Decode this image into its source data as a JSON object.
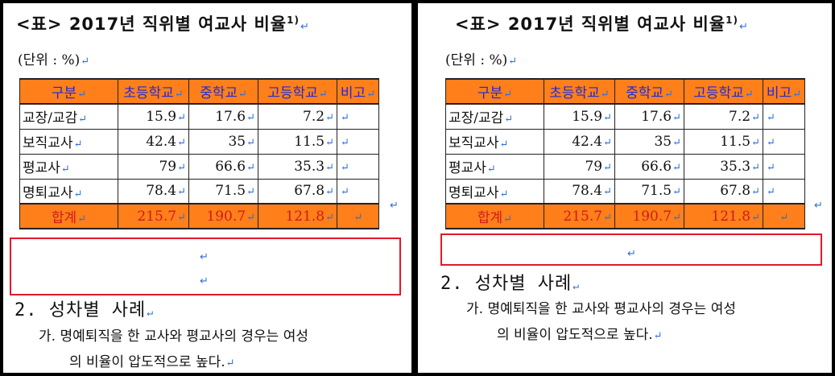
{
  "title_text": "<표> 2017년 직위별 여교사 비율",
  "title_footnote": "1)",
  "unit_text": "(단위 : %)",
  "paragraph_mark": "↵",
  "table": {
    "headers": [
      "구분",
      "초등학교",
      "중학교",
      "고등학교",
      "비고"
    ],
    "rows": [
      {
        "label": "교장/교감",
        "values": [
          "15.9",
          "17.6",
          "7.2"
        ]
      },
      {
        "label": "보직교사",
        "values": [
          "42.4",
          "35",
          "11.5"
        ]
      },
      {
        "label": "평교사",
        "values": [
          "79",
          "66.6",
          "35.3"
        ]
      },
      {
        "label": "명퇴교사",
        "values": [
          "78.4",
          "71.5",
          "67.8"
        ]
      }
    ],
    "total": {
      "label": "합계",
      "values": [
        "215.7",
        "190.7",
        "121.8"
      ]
    }
  },
  "section_heading": "2. 성차별 사례",
  "body_line1": "가. 명예퇴직을 한 교사와 평교사의 경우는 여성",
  "body_line2": "의 비율이 압도적으로 높다.",
  "colors": {
    "header_fill": "#ff7f1a",
    "header_text": "#1e2ad8",
    "total_text": "#d11b1b",
    "highlight_box": "#e0192b",
    "edit_mark": "#2f6fd6"
  }
}
